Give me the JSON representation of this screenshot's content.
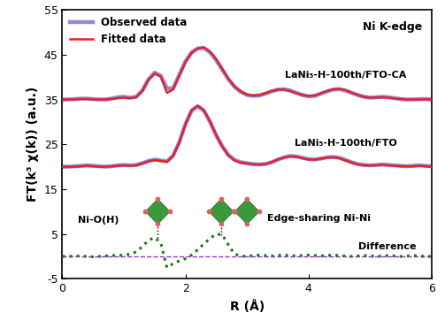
{
  "chart_data": {
    "type": "line",
    "title": "Ni K-edge",
    "x_label": "R (Å)",
    "y_label": "FT(k³ χ(k)) (a.u.)",
    "xlim": [
      0,
      6
    ],
    "xticks": [
      0,
      2,
      4,
      6
    ],
    "ylim": [
      -5,
      55
    ],
    "yticks": [
      -5,
      5,
      15,
      25,
      35,
      45,
      55
    ],
    "legend": "upper left",
    "x": [
      0.0,
      0.1,
      0.2,
      0.3,
      0.4,
      0.5,
      0.6,
      0.7,
      0.8,
      0.9,
      1.0,
      1.1,
      1.2,
      1.3,
      1.4,
      1.5,
      1.6,
      1.7,
      1.8,
      1.9,
      2.0,
      2.1,
      2.2,
      2.3,
      2.4,
      2.5,
      2.6,
      2.7,
      2.8,
      2.9,
      3.0,
      3.1,
      3.2,
      3.3,
      3.4,
      3.5,
      3.6,
      3.7,
      3.8,
      3.9,
      4.0,
      4.1,
      4.2,
      4.3,
      4.4,
      4.5,
      4.6,
      4.7,
      4.8,
      4.9,
      5.0,
      5.1,
      5.2,
      5.3,
      5.4,
      5.5,
      5.6,
      5.7,
      5.8,
      5.9,
      6.0
    ],
    "series": [
      {
        "name": "Observed data",
        "sample": "LaNi₅-H-100th/FTO-CA",
        "color": "#8c8cd8",
        "line_style": "solid",
        "values": [
          35.0,
          35.0,
          35.1,
          35.2,
          35.2,
          35.1,
          35.0,
          35.0,
          35.2,
          35.5,
          35.6,
          35.4,
          35.6,
          37.0,
          39.5,
          41.0,
          40.3,
          37.5,
          37.5,
          40.5,
          43.5,
          45.5,
          46.4,
          46.5,
          45.5,
          43.8,
          41.6,
          39.5,
          37.8,
          36.7,
          36.0,
          35.8,
          35.9,
          36.3,
          36.8,
          37.2,
          37.3,
          37.0,
          36.5,
          36.0,
          35.7,
          35.8,
          36.3,
          36.8,
          37.2,
          37.3,
          37.0,
          36.5,
          36.0,
          35.6,
          35.4,
          35.5,
          35.6,
          35.5,
          35.3,
          35.1,
          35.0,
          35.0,
          35.1,
          35.1,
          35.0
        ]
      },
      {
        "name": "Fitted data",
        "sample": "LaNi₅-H-100th/FTO-CA",
        "color": "#e8202a",
        "line_style": "solid",
        "values": [
          35.0,
          35.0,
          35.0,
          35.1,
          35.1,
          35.0,
          35.0,
          35.0,
          35.1,
          35.3,
          35.4,
          35.3,
          35.5,
          36.9,
          39.4,
          40.8,
          40.1,
          36.5,
          37.2,
          40.3,
          43.3,
          45.4,
          46.4,
          46.6,
          45.7,
          44.0,
          41.8,
          39.6,
          37.9,
          36.8,
          36.1,
          35.9,
          36.0,
          36.4,
          36.9,
          37.2,
          37.2,
          36.9,
          36.4,
          36.0,
          35.8,
          35.9,
          36.4,
          36.9,
          37.3,
          37.4,
          37.1,
          36.5,
          36.0,
          35.6,
          35.4,
          35.4,
          35.5,
          35.4,
          35.2,
          35.1,
          35.0,
          35.0,
          35.0,
          35.0,
          35.0
        ]
      },
      {
        "name": "Observed data",
        "sample": "LaNi₅-H-100th/FTO",
        "color": "#8c8cd8",
        "line_style": "solid",
        "values": [
          20.0,
          20.0,
          20.1,
          20.2,
          20.3,
          20.2,
          20.1,
          20.0,
          20.1,
          20.3,
          20.4,
          20.3,
          20.4,
          20.8,
          21.3,
          21.6,
          21.4,
          21.2,
          22.5,
          25.5,
          29.5,
          32.5,
          33.5,
          32.5,
          30.0,
          27.0,
          24.5,
          22.6,
          21.5,
          21.0,
          20.8,
          20.6,
          20.5,
          20.6,
          21.0,
          21.6,
          22.1,
          22.4,
          22.3,
          22.0,
          21.7,
          21.6,
          21.8,
          22.1,
          22.2,
          22.0,
          21.5,
          21.0,
          20.6,
          20.4,
          20.3,
          20.4,
          20.5,
          20.4,
          20.3,
          20.2,
          20.1,
          20.2,
          20.3,
          20.2,
          20.1
        ]
      },
      {
        "name": "Fitted data",
        "sample": "LaNi₅-H-100th/FTO",
        "color": "#e8202a",
        "line_style": "solid",
        "values": [
          20.0,
          20.0,
          20.0,
          20.1,
          20.2,
          20.1,
          20.0,
          20.0,
          20.1,
          20.2,
          20.3,
          20.2,
          20.3,
          20.7,
          21.2,
          21.5,
          21.3,
          21.1,
          22.4,
          25.4,
          29.4,
          32.6,
          33.6,
          32.6,
          30.1,
          27.1,
          24.5,
          22.5,
          21.4,
          20.9,
          20.7,
          20.5,
          20.5,
          20.6,
          21.0,
          21.6,
          22.0,
          22.3,
          22.2,
          21.9,
          21.6,
          21.6,
          21.8,
          22.0,
          22.1,
          21.9,
          21.4,
          20.9,
          20.5,
          20.3,
          20.3,
          20.3,
          20.4,
          20.3,
          20.2,
          20.1,
          20.1,
          20.1,
          20.2,
          20.1,
          20.0
        ]
      }
    ],
    "difference": {
      "label": "Difference",
      "color": "#1a7a1a",
      "line_style": "dotted",
      "values": [
        0.0,
        0.0,
        0.1,
        0.1,
        0.0,
        -0.1,
        0.0,
        0.1,
        0.2,
        0.2,
        0.3,
        0.5,
        1.0,
        2.2,
        3.6,
        4.2,
        3.0,
        -2.5,
        -1.6,
        -1.0,
        -0.5,
        0.3,
        1.5,
        2.8,
        4.0,
        5.0,
        4.8,
        2.5,
        0.5,
        0.1,
        0.0,
        0.2,
        0.3,
        0.2,
        0.1,
        0.2,
        0.3,
        0.2,
        0.1,
        0.2,
        0.3,
        0.2,
        0.1,
        0.2,
        0.3,
        0.2,
        0.1,
        0.0,
        0.1,
        0.2,
        0.1,
        0.0,
        0.1,
        0.2,
        0.1,
        0.0,
        0.1,
        0.2,
        0.1,
        0.0,
        0.0
      ]
    },
    "baseline": {
      "value": 0,
      "color": "#9933cc",
      "line_style": "dashed"
    },
    "paths": [
      {
        "label": "Ni-O(H)",
        "r": 1.55
      },
      {
        "label": "Edge-sharing Ni-Ni",
        "r": 2.58
      }
    ]
  }
}
